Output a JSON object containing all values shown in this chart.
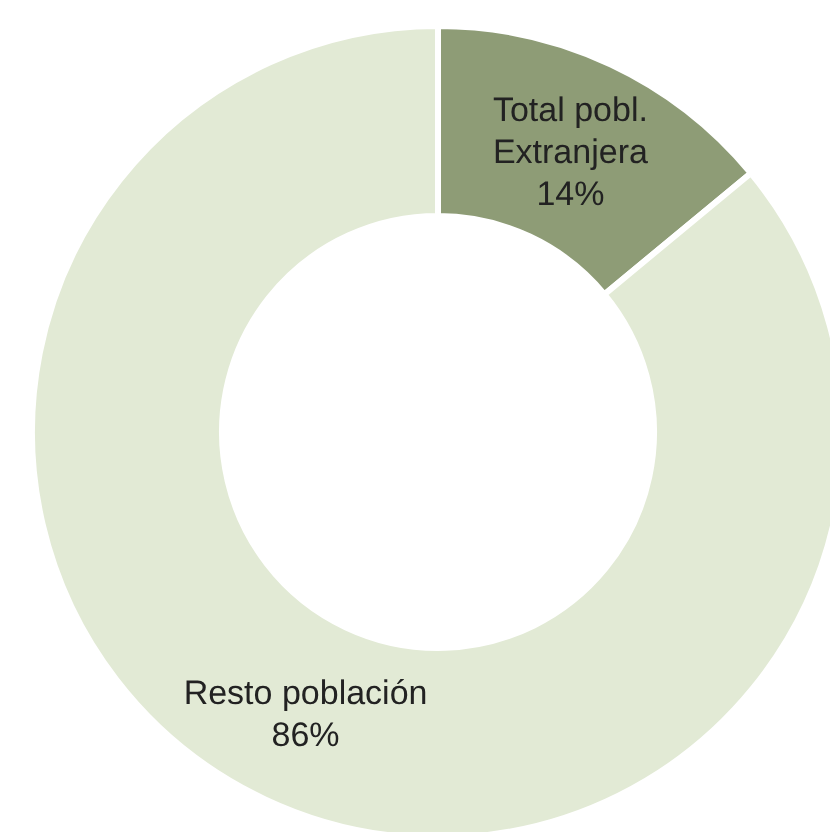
{
  "chart_data": {
    "type": "donut",
    "categories": [
      "Total pobl. Extranjera",
      "Resto población"
    ],
    "values": [
      14,
      86
    ],
    "colors": [
      "#8e9c76",
      "#e2ead5"
    ],
    "value_labels": [
      "14%",
      "86%"
    ]
  }
}
